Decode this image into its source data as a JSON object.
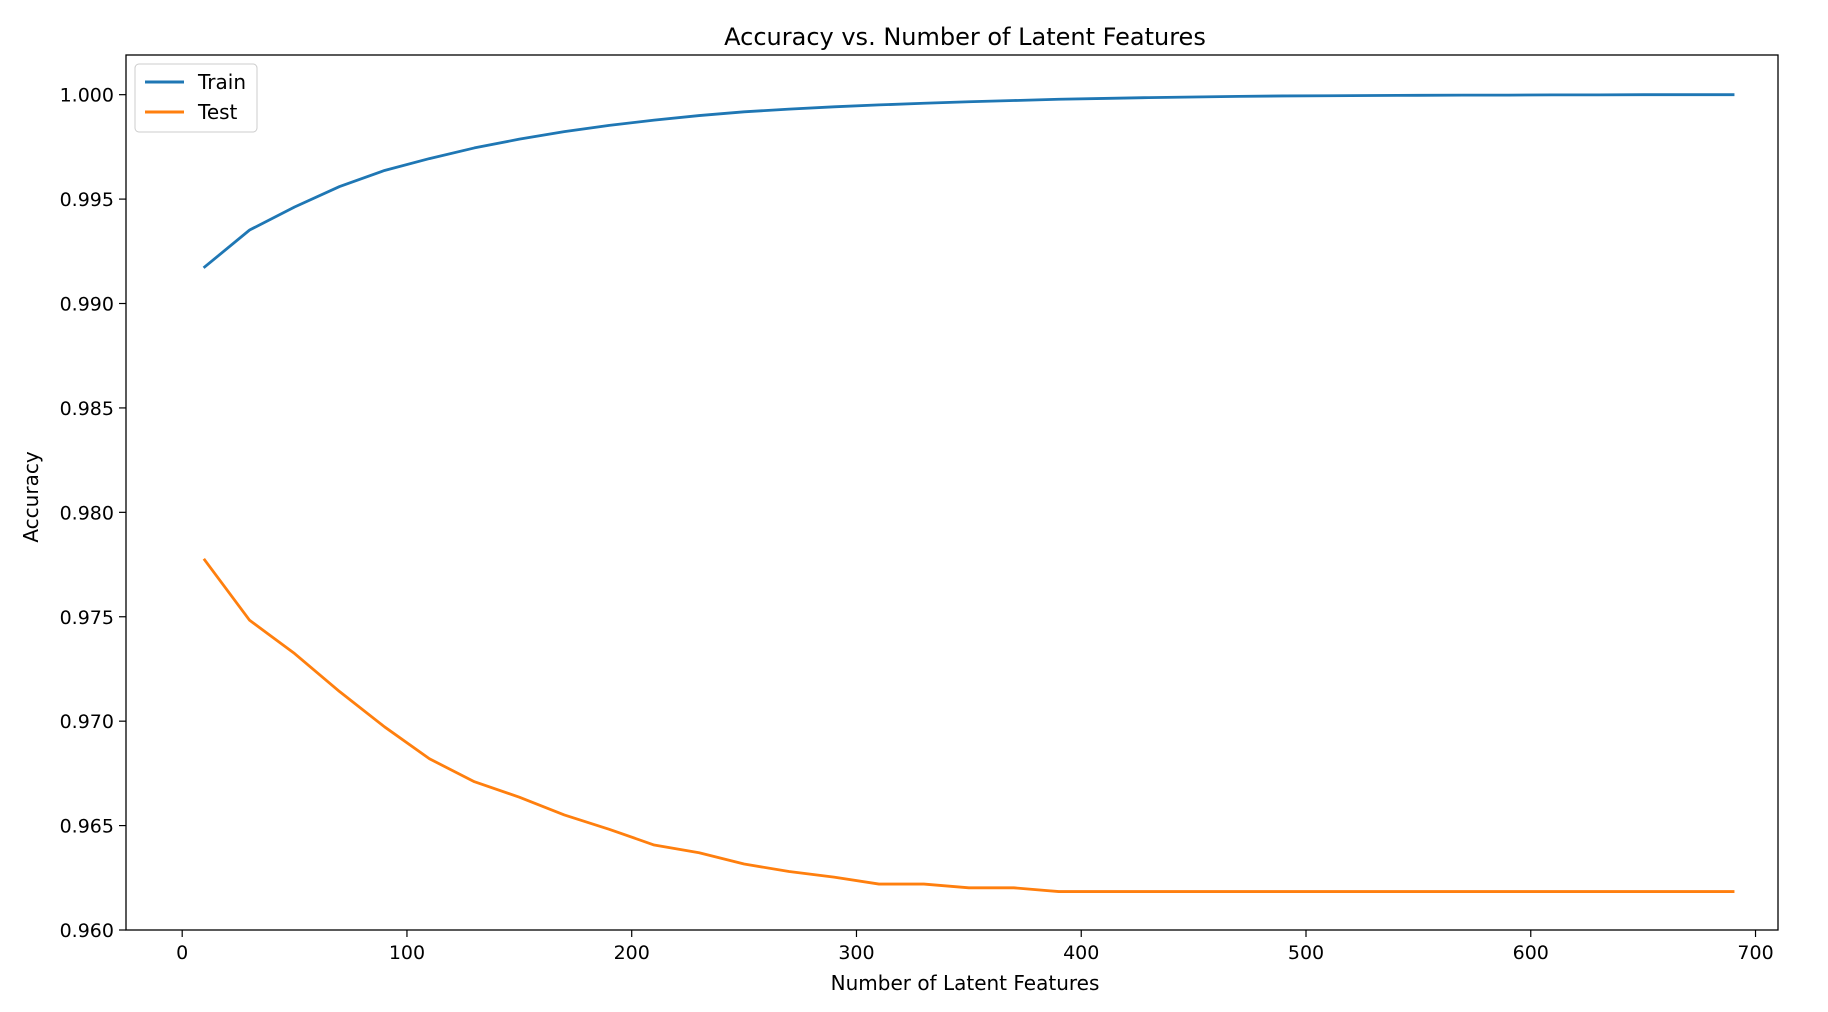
{
  "chart_data": {
    "type": "line",
    "title": "Accuracy vs. Number of Latent Features",
    "xlabel": "Number of Latent Features",
    "ylabel": "Accuracy",
    "xlim": [
      -25,
      710
    ],
    "ylim": [
      0.96,
      1.0019
    ],
    "xticks": [
      0,
      100,
      200,
      300,
      400,
      500,
      600,
      700
    ],
    "xtick_labels": [
      "0",
      "100",
      "200",
      "300",
      "400",
      "500",
      "600",
      "700"
    ],
    "yticks": [
      0.96,
      0.965,
      0.97,
      0.975,
      0.98,
      0.985,
      0.99,
      0.995,
      1.0
    ],
    "ytick_labels": [
      "0.960",
      "0.965",
      "0.970",
      "0.975",
      "0.980",
      "0.985",
      "0.990",
      "0.995",
      "1.000"
    ],
    "grid": false,
    "legend_position": "top-left",
    "x": [
      10,
      30,
      50,
      70,
      90,
      110,
      130,
      150,
      170,
      190,
      210,
      230,
      250,
      270,
      290,
      310,
      330,
      350,
      370,
      390,
      410,
      430,
      450,
      470,
      490,
      510,
      530,
      550,
      570,
      590,
      610,
      630,
      650,
      670,
      690
    ],
    "series": [
      {
        "name": "Train",
        "color": "#1f77b4",
        "values": [
          0.99175,
          0.99352,
          0.99462,
          0.9956,
          0.99637,
          0.99694,
          0.99745,
          0.99787,
          0.99823,
          0.99853,
          0.99878,
          0.999,
          0.99918,
          0.99931,
          0.99942,
          0.99951,
          0.99959,
          0.99966,
          0.99972,
          0.99978,
          0.99982,
          0.99986,
          0.99989,
          0.99992,
          0.99994,
          0.99995,
          0.99996,
          0.99997,
          0.99998,
          0.99998,
          0.99999,
          0.99999,
          1.0,
          1.0,
          1.0
        ]
      },
      {
        "name": "Test",
        "color": "#ff7f0e",
        "values": [
          0.97772,
          0.97483,
          0.97324,
          0.97142,
          0.96973,
          0.9682,
          0.9671,
          0.96636,
          0.96551,
          0.96482,
          0.96407,
          0.9637,
          0.96316,
          0.9628,
          0.96253,
          0.9622,
          0.9622,
          0.96202,
          0.96202,
          0.96184,
          0.96184,
          0.96184,
          0.96184,
          0.96184,
          0.96184,
          0.96184,
          0.96184,
          0.96184,
          0.96184,
          0.96184,
          0.96184,
          0.96184,
          0.96184,
          0.96184,
          0.96184
        ]
      }
    ]
  }
}
